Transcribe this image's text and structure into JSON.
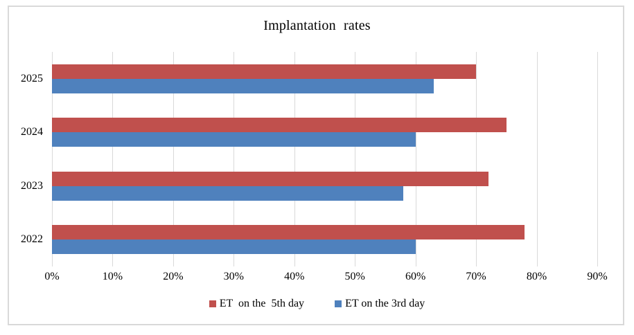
{
  "chart_data": {
    "type": "bar",
    "orientation": "horizontal",
    "title": "Implantation rates",
    "categories": [
      "2025",
      "2024",
      "2023",
      "2022"
    ],
    "row_order": "top_to_bottom",
    "unit": "%",
    "series": [
      {
        "name": "ET  on the  5th day",
        "color": "#C0504D",
        "values": [
          70,
          75,
          72,
          78
        ]
      },
      {
        "name": "ET on the 3rd day",
        "color": "#4F81BD",
        "values": [
          63,
          60,
          58,
          60
        ]
      }
    ],
    "xlim": [
      0,
      90
    ],
    "x_tick_step": 10,
    "x_ticks": [
      "0%",
      "10%",
      "20%",
      "30%",
      "40%",
      "50%",
      "60%",
      "70%",
      "80%",
      "90%"
    ],
    "grid": true,
    "legend_position": "bottom",
    "gridline_color": "#D9D9D9",
    "frame_color": "#D9D9D9",
    "text_color": "#000000",
    "background_color": "#FFFFFF"
  }
}
